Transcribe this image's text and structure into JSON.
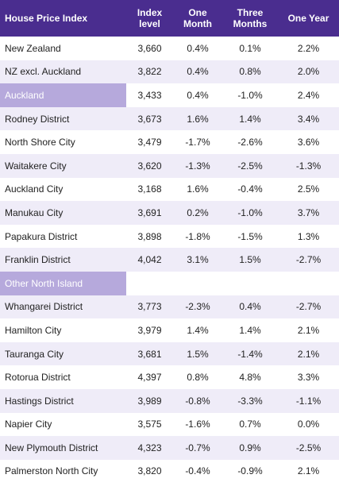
{
  "headers": [
    "House Price Index",
    "Index level",
    "One Month",
    "Three Months",
    "One Year"
  ],
  "rows": [
    {
      "name": "New Zealand",
      "index": "3,660",
      "m1": "0.4%",
      "m3": "0.1%",
      "y1": "2.2%",
      "type": "data"
    },
    {
      "name": "NZ excl. Auckland",
      "index": "3,822",
      "m1": "0.4%",
      "m3": "0.8%",
      "y1": "2.0%",
      "type": "data"
    },
    {
      "name": "Auckland",
      "index": "3,433",
      "m1": "0.4%",
      "m3": "-1.0%",
      "y1": "2.4%",
      "type": "section-data"
    },
    {
      "name": "Rodney District",
      "index": "3,673",
      "m1": "1.6%",
      "m3": "1.4%",
      "y1": "3.4%",
      "type": "data"
    },
    {
      "name": "North Shore City",
      "index": "3,479",
      "m1": "-1.7%",
      "m3": "-2.6%",
      "y1": "3.6%",
      "type": "data"
    },
    {
      "name": "Waitakere City",
      "index": "3,620",
      "m1": "-1.3%",
      "m3": "-2.5%",
      "y1": "-1.3%",
      "type": "data"
    },
    {
      "name": "Auckland City",
      "index": "3,168",
      "m1": "1.6%",
      "m3": "-0.4%",
      "y1": "2.5%",
      "type": "data"
    },
    {
      "name": "Manukau City",
      "index": "3,691",
      "m1": "0.2%",
      "m3": "-1.0%",
      "y1": "3.7%",
      "type": "data"
    },
    {
      "name": "Papakura District",
      "index": "3,898",
      "m1": "-1.8%",
      "m3": "-1.5%",
      "y1": "1.3%",
      "type": "data"
    },
    {
      "name": "Franklin District",
      "index": "4,042",
      "m1": "3.1%",
      "m3": "1.5%",
      "y1": "-2.7%",
      "type": "data"
    },
    {
      "name": "Other North Island",
      "index": "",
      "m1": "",
      "m3": "",
      "y1": "",
      "type": "section"
    },
    {
      "name": "Whangarei District",
      "index": "3,773",
      "m1": "-2.3%",
      "m3": "0.4%",
      "y1": "-2.7%",
      "type": "data"
    },
    {
      "name": "Hamilton City",
      "index": "3,979",
      "m1": "1.4%",
      "m3": "1.4%",
      "y1": "2.1%",
      "type": "data"
    },
    {
      "name": "Tauranga City",
      "index": "3,681",
      "m1": "1.5%",
      "m3": "-1.4%",
      "y1": "2.1%",
      "type": "data"
    },
    {
      "name": "Rotorua District",
      "index": "4,397",
      "m1": "0.8%",
      "m3": "4.8%",
      "y1": "3.3%",
      "type": "data"
    },
    {
      "name": "Hastings District",
      "index": "3,989",
      "m1": "-0.8%",
      "m3": "-3.3%",
      "y1": "-1.1%",
      "type": "data"
    },
    {
      "name": "Napier City",
      "index": "3,575",
      "m1": "-1.6%",
      "m3": "0.7%",
      "y1": "0.0%",
      "type": "data"
    },
    {
      "name": "New Plymouth District",
      "index": "4,323",
      "m1": "-0.7%",
      "m3": "0.9%",
      "y1": "-2.5%",
      "type": "data"
    },
    {
      "name": "Palmerston North City",
      "index": "3,820",
      "m1": "-0.4%",
      "m3": "-0.9%",
      "y1": "2.1%",
      "type": "data"
    }
  ],
  "colors": {
    "header_bg": "#4a2d8f",
    "section_bg": "#b6a9dc",
    "stripe_bg": "#efecf8"
  }
}
